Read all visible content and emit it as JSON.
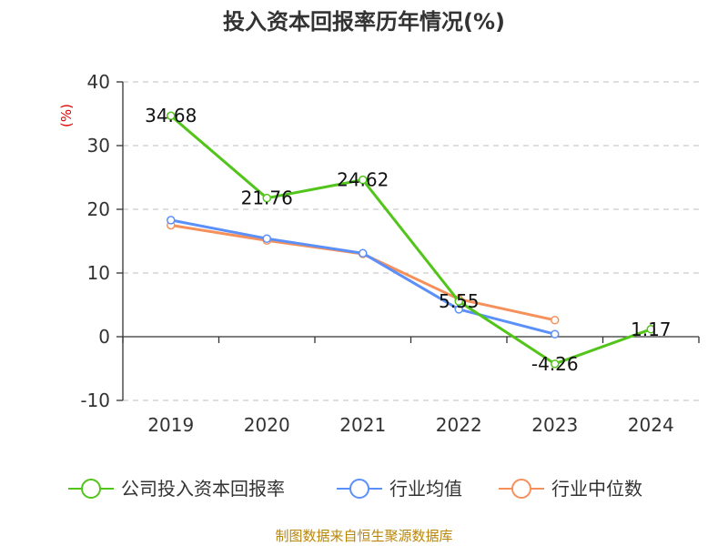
{
  "chart_data": {
    "type": "line",
    "title": "投入资本回报率历年情况(%)",
    "ylabel": "(%)",
    "xlabel": "",
    "categories": [
      "2019",
      "2020",
      "2021",
      "2022",
      "2023",
      "2024"
    ],
    "ylim": [
      -10,
      40
    ],
    "yticks": [
      40,
      30,
      20,
      10,
      0,
      -10
    ],
    "grid": true,
    "legend_position": "bottom",
    "series": [
      {
        "name": "公司投入资本回报率",
        "color": "#52c41a",
        "values": [
          34.68,
          21.76,
          24.62,
          5.55,
          -4.26,
          1.17
        ],
        "labels": [
          "34.68",
          "21.76",
          "24.62",
          "5.55",
          "-4.26",
          "1.17"
        ]
      },
      {
        "name": "行业均值",
        "color": "#5b8ff9",
        "values": [
          18.3,
          15.4,
          13.1,
          4.3,
          0.4,
          null
        ]
      },
      {
        "name": "行业中位数",
        "color": "#f6905a",
        "values": [
          17.5,
          15.1,
          13.0,
          5.9,
          2.6,
          null
        ]
      }
    ]
  },
  "footer": {
    "source": "制图数据来自恒生聚源数据库"
  }
}
